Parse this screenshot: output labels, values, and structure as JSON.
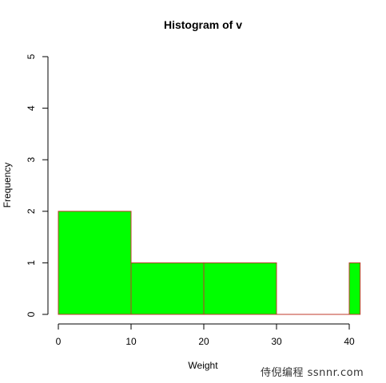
{
  "chart_data": {
    "type": "bar",
    "title": "Histogram of v",
    "xlabel": "Weight",
    "ylabel": "Frequency",
    "bins": [
      {
        "start": 0,
        "end": 10,
        "count": 2
      },
      {
        "start": 10,
        "end": 20,
        "count": 1
      },
      {
        "start": 20,
        "end": 30,
        "count": 1
      },
      {
        "start": 30,
        "end": 40,
        "count": 0
      },
      {
        "start": 40,
        "end": 41.5,
        "count": 1
      }
    ],
    "xticks": [
      0,
      10,
      20,
      30,
      40
    ],
    "yticks": [
      0,
      1,
      2,
      3,
      4,
      5
    ],
    "xlim": [
      0,
      41.5
    ],
    "ylim": [
      0,
      5
    ],
    "bar_fill": "#00ff00",
    "bar_border": "#c0392b",
    "grid": false
  },
  "watermark": "侍倪编程 ssnnr.com"
}
